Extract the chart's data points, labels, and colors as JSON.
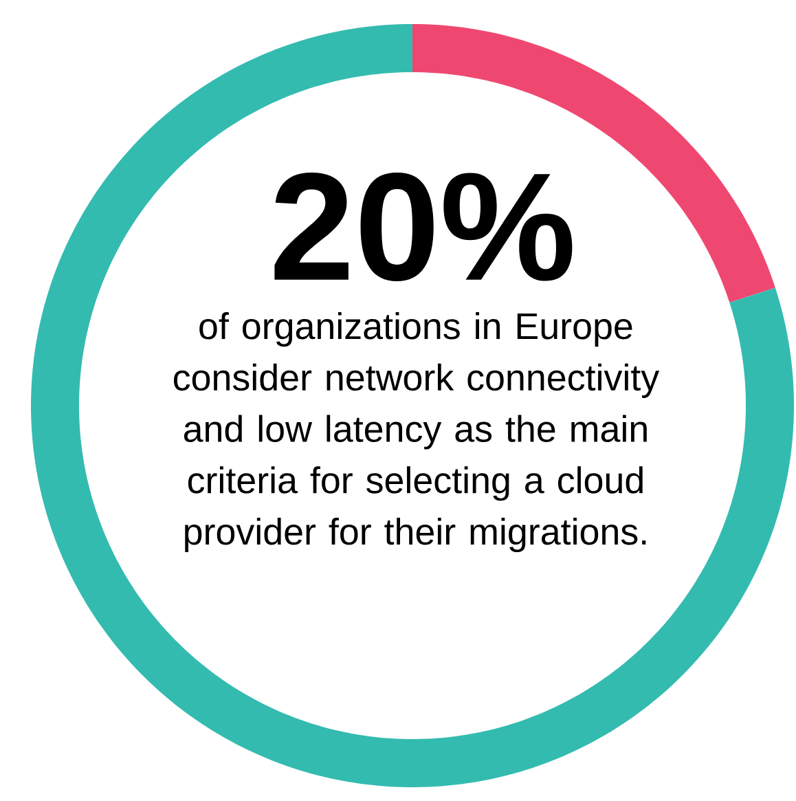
{
  "chart_data": {
    "type": "donut",
    "title": "20%",
    "subtitle": "of organizations in Europe consider network connectivity and low latency as the main criteria for selecting a cloud provider for their migrations.",
    "categories": [
      null,
      null
    ],
    "values": [
      20,
      80
    ],
    "colors": [
      "#ef4870",
      "#34bbb0"
    ]
  }
}
